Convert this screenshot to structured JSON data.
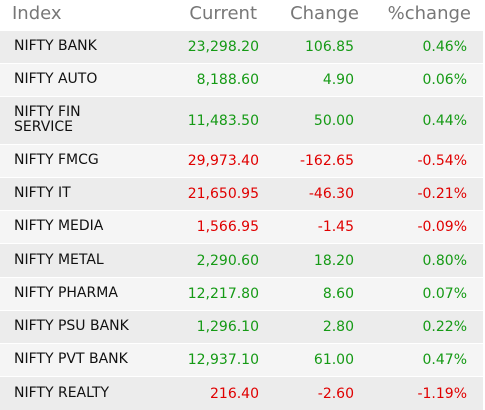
{
  "header": {
    "index": "Index",
    "current": "Current",
    "change": "Change",
    "pct_change": "%change"
  },
  "rows": [
    {
      "name": "NIFTY BANK",
      "current": "23,298.20",
      "change": "106.85",
      "pct": "0.46%",
      "dir": "up"
    },
    {
      "name": "NIFTY AUTO",
      "current": "8,188.60",
      "change": "4.90",
      "pct": "0.06%",
      "dir": "up"
    },
    {
      "name": "NIFTY FIN SERVICE",
      "current": "11,483.50",
      "change": "50.00",
      "pct": "0.44%",
      "dir": "up"
    },
    {
      "name": "NIFTY FMCG",
      "current": "29,973.40",
      "change": "-162.65",
      "pct": "-0.54%",
      "dir": "down"
    },
    {
      "name": "NIFTY IT",
      "current": "21,650.95",
      "change": "-46.30",
      "pct": "-0.21%",
      "dir": "down"
    },
    {
      "name": "NIFTY MEDIA",
      "current": "1,566.95",
      "change": "-1.45",
      "pct": "-0.09%",
      "dir": "down"
    },
    {
      "name": "NIFTY METAL",
      "current": "2,290.60",
      "change": "18.20",
      "pct": "0.80%",
      "dir": "up"
    },
    {
      "name": "NIFTY PHARMA",
      "current": "12,217.80",
      "change": "8.60",
      "pct": "0.07%",
      "dir": "up"
    },
    {
      "name": "NIFTY PSU BANK",
      "current": "1,296.10",
      "change": "2.80",
      "pct": "0.22%",
      "dir": "up"
    },
    {
      "name": "NIFTY PVT BANK",
      "current": "12,937.10",
      "change": "61.00",
      "pct": "0.47%",
      "dir": "up"
    },
    {
      "name": "NIFTY REALTY",
      "current": "216.40",
      "change": "-2.60",
      "pct": "-1.19%",
      "dir": "down"
    }
  ],
  "colors": {
    "up": "#159a15",
    "down": "#e00000",
    "header_text": "#777777",
    "row_bg": "#ececec",
    "row_bg_alt": "#f5f5f5"
  }
}
